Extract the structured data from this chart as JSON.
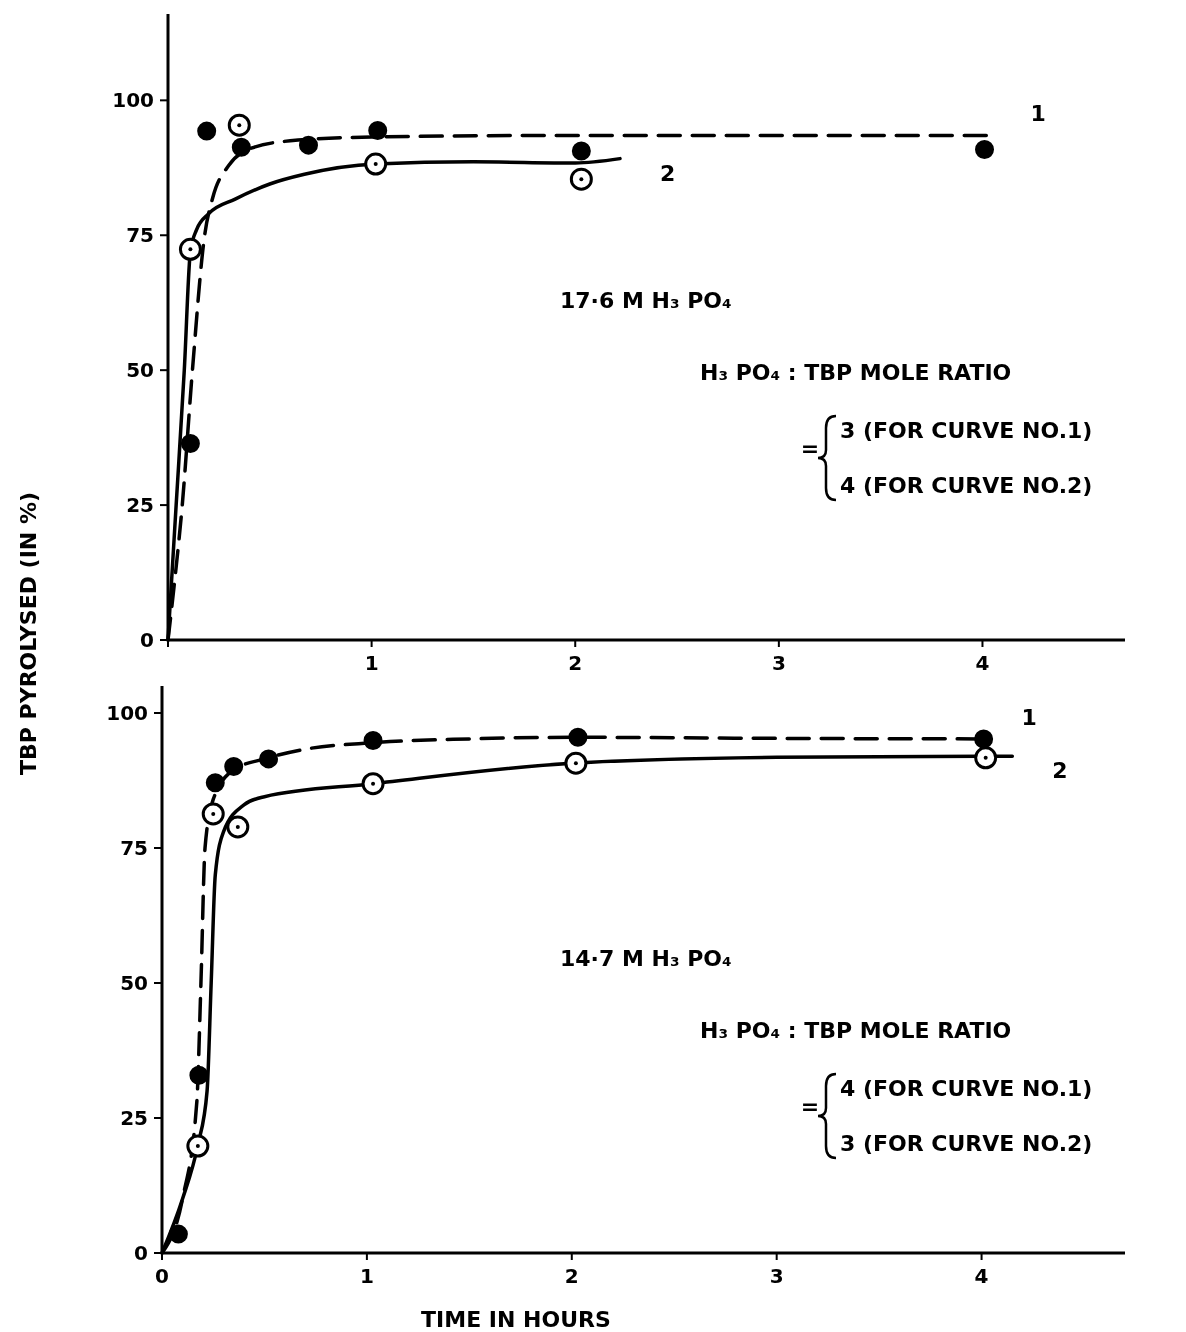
{
  "chart_data": [
    {
      "type": "line",
      "ylabel": "TBP PYROLYSED (IN %)",
      "xlim": [
        0,
        4.7
      ],
      "ylim": [
        0,
        116
      ],
      "xticks": [
        {
          "value": 0,
          "label": null
        },
        1,
        2,
        3,
        4
      ],
      "yticks": [
        0,
        25,
        50,
        75,
        100
      ],
      "grid": false,
      "annotations": [
        "17·6 M H₃ PO₄",
        "H₃ PO₄ : TBP MOLE RATIO",
        "=",
        "3 (FOR CURVE NO.1)",
        "4 (FOR CURVE NO.2)"
      ],
      "series": [
        {
          "name": "1",
          "line_style": "dashed",
          "marker": "none",
          "color": "#000000",
          "x": [
            0,
            0.03,
            0.07,
            0.12,
            0.18,
            0.22,
            0.3,
            0.4,
            0.6,
            1,
            2,
            4.04
          ],
          "values": [
            0,
            10,
            25,
            50,
            75,
            82,
            88,
            91,
            92.5,
            93.2,
            93.5,
            93.5
          ]
        },
        {
          "name": "2",
          "line_style": "solid",
          "marker": "none",
          "color": "#000000",
          "x": [
            0,
            0.04,
            0.08,
            0.11,
            0.14,
            0.2,
            0.33,
            0.5,
            0.67,
            1.02,
            1.5,
            2,
            2.22
          ],
          "values": [
            0,
            25,
            50,
            72,
            76,
            79,
            81.7,
            84.5,
            86.3,
            88.2,
            88.6,
            88.4,
            89.2
          ]
        },
        {
          "type": "scatter",
          "marker": "circle",
          "color": "#000000",
          "x": [
            0.11,
            0.19,
            0.36,
            0.69,
            1.03,
            2.03,
            4.01
          ],
          "values": [
            36.4,
            94.3,
            91.3,
            91.7,
            94.4,
            90.6,
            90.9
          ]
        },
        {
          "type": "scatter",
          "marker": "circle",
          "color": "#ffffff",
          "x": [
            0.11,
            0.35,
            1.02,
            2.03
          ],
          "values": [
            72.4,
            95.4,
            88.2,
            85.4
          ]
        }
      ]
    },
    {
      "type": "line",
      "xlabel": "TIME IN HOURS",
      "xlim": [
        0,
        4.7
      ],
      "ylim": [
        0,
        105
      ],
      "xticks": [
        0,
        1,
        2,
        3,
        4
      ],
      "yticks": [
        0,
        25,
        50,
        75,
        100
      ],
      "grid": false,
      "annotations": [
        "14·7 M H₃ PO₄",
        "H₃ PO₄ : TBP MOLE RATIO",
        "=",
        "4 (FOR CURVE NO.1)",
        "3 (FOR CURVE NO.2)"
      ],
      "series": [
        {
          "name": "1",
          "line_style": "dashed",
          "marker": "none",
          "color": "#000000",
          "x": [
            0,
            0.1,
            0.17,
            0.19,
            0.21,
            0.25,
            0.35,
            0.5,
            0.7,
            1.03,
            1.5,
            2,
            3,
            4
          ],
          "values": [
            0,
            10,
            28,
            50,
            75,
            84,
            89.5,
            91.5,
            93.3,
            94.5,
            95.2,
            95.5,
            95.3,
            95.2
          ]
        },
        {
          "name": "2",
          "line_style": "solid",
          "marker": "none",
          "color": "#000000",
          "x": [
            0,
            0.1,
            0.175,
            0.22,
            0.24,
            0.26,
            0.3,
            0.4,
            0.5,
            1.03,
            2,
            3,
            4,
            4.15
          ],
          "values": [
            0,
            10,
            20,
            30,
            50,
            70,
            78,
            83,
            84.5,
            86.9,
            90.7,
            91.8,
            92,
            92
          ]
        },
        {
          "type": "scatter",
          "marker": "circle",
          "color": "#000000",
          "x": [
            0.08,
            0.18,
            0.26,
            0.35,
            0.52,
            1.03,
            2.03,
            4.01
          ],
          "values": [
            3.5,
            32.9,
            87.1,
            90.1,
            91.5,
            94.9,
            95.5,
            95.2
          ]
        },
        {
          "type": "scatter",
          "marker": "circle",
          "color": "#ffffff",
          "x": [
            0.175,
            0.25,
            0.37,
            1.03,
            2.02,
            4.02
          ],
          "values": [
            19.8,
            81.3,
            78.9,
            86.9,
            90.7,
            91.7
          ]
        }
      ]
    }
  ]
}
